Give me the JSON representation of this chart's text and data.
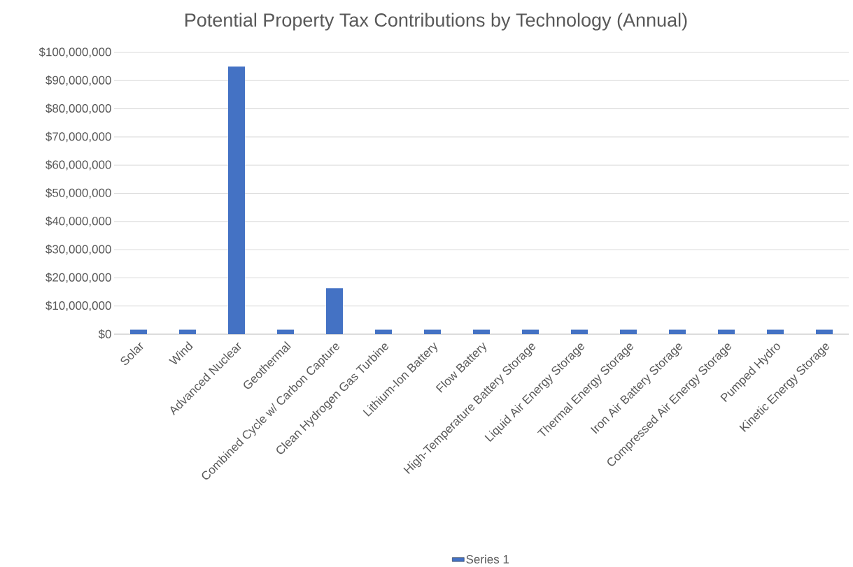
{
  "chart_data": {
    "type": "bar",
    "title": "Potential Property Tax Contributions by Technology (Annual)",
    "categories": [
      "Solar",
      "Wind",
      "Advanced Nuclear",
      "Geothermal",
      "Combined Cycle w/ Carbon Capture",
      "Clean Hydrogen Gas Turbine",
      "Lithium-Ion Battery",
      "Flow Battery",
      "High-Temperature Battery Storage",
      "Liquid Air Energy Storage",
      "Thermal Energy Storage",
      "Iron Air Battery Storage",
      "Compressed Air Energy Storage",
      "Pumped Hydro",
      "Kinetic Energy Storage"
    ],
    "series": [
      {
        "name": "Series 1",
        "color": "#4472c4",
        "values": [
          1600000,
          1600000,
          95000000,
          1600000,
          16300000,
          1600000,
          1600000,
          1600000,
          1600000,
          1600000,
          1600000,
          1600000,
          1600000,
          1600000,
          1600000
        ]
      }
    ],
    "ylim": [
      0,
      100000000
    ],
    "yticks": [
      {
        "value": 0,
        "label": "$0"
      },
      {
        "value": 10000000,
        "label": "$10,000,000"
      },
      {
        "value": 20000000,
        "label": "$20,000,000"
      },
      {
        "value": 30000000,
        "label": "$30,000,000"
      },
      {
        "value": 40000000,
        "label": "$40,000,000"
      },
      {
        "value": 50000000,
        "label": "$50,000,000"
      },
      {
        "value": 60000000,
        "label": "$60,000,000"
      },
      {
        "value": 70000000,
        "label": "$70,000,000"
      },
      {
        "value": 80000000,
        "label": "$80,000,000"
      },
      {
        "value": 90000000,
        "label": "$90,000,000"
      },
      {
        "value": 100000000,
        "label": "$100,000,000"
      }
    ],
    "grid": "y",
    "legend": "bottom"
  }
}
